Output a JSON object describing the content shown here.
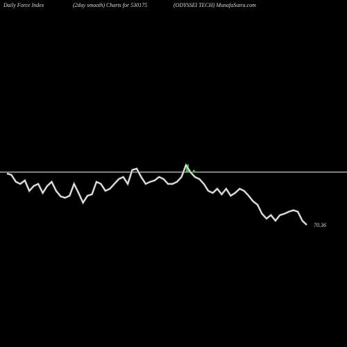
{
  "chart_data": {
    "type": "line",
    "title_left": "Daily Force  Index",
    "title_center": "(2day smooth) Charts for 530175",
    "title_right": "(ODYSSEI TECH) MunafaSutra.com",
    "values": [
      100,
      99.2,
      95.2,
      94,
      96,
      90,
      92.8,
      94,
      88.8,
      92.8,
      95.2,
      90,
      86.8,
      86,
      87.2,
      94,
      88.8,
      83.2,
      87.2,
      88,
      95.2,
      94,
      90,
      91.2,
      94,
      96.8,
      98,
      94,
      102,
      102.8,
      98,
      94,
      95.2,
      96,
      98,
      96.8,
      94,
      94,
      95.2,
      98,
      104.8,
      100.8,
      98,
      96.8,
      94,
      90,
      88.8,
      91.2,
      88,
      91.2,
      87.2,
      88.8,
      91.2,
      90,
      87.2,
      84,
      82,
      76.8,
      74,
      76,
      72.8,
      76,
      76.8,
      78,
      78.8,
      78,
      72.8,
      70.36
    ],
    "color": "#ffffff",
    "ylim": [
      0,
      200
    ]
  }
}
